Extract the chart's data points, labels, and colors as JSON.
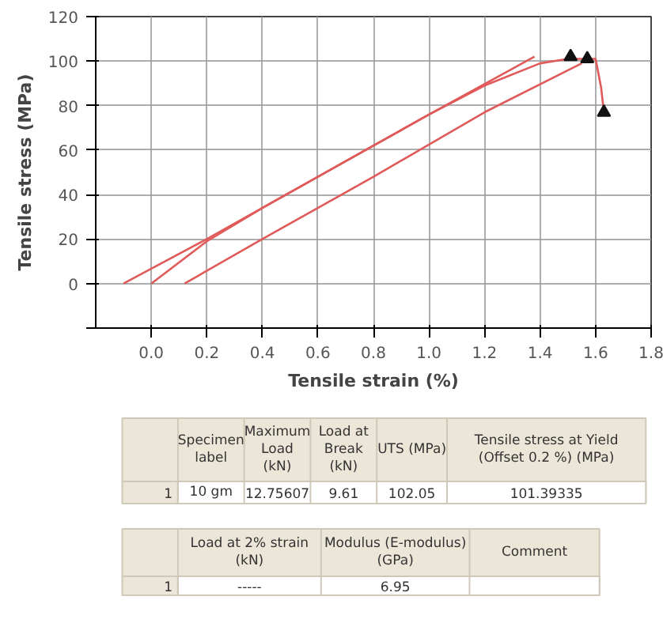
{
  "chart_data": {
    "type": "line",
    "xlabel": "Tensile strain (%)",
    "ylabel": "Tensile stress (MPa)",
    "xlim": [
      -0.2,
      1.8
    ],
    "ylim": [
      -20,
      120
    ],
    "xticks": [
      {
        "value": 0,
        "label": "0.0"
      },
      0.2,
      0.4,
      0.6,
      0.8,
      {
        "value": 1,
        "label": "1.0"
      },
      1.2,
      1.4,
      1.6,
      1.8
    ],
    "yticks": [
      {
        "value": -20,
        "label": null
      },
      0,
      20,
      40,
      60,
      80,
      100,
      120
    ],
    "grid": true,
    "marker": "none",
    "line_style": "solid",
    "series": [
      {
        "color": "#e05a5a",
        "x": [
          -0.1,
          0.2,
          0.6,
          1.0,
          1.38
        ],
        "values": [
          0,
          20,
          48,
          76,
          102
        ]
      },
      {
        "color": "#e05a5a",
        "x": [
          0,
          0.2,
          0.4,
          0.6,
          0.8,
          1.0,
          1.2,
          1.4,
          1.5,
          1.6,
          1.62,
          1.63
        ],
        "values": [
          0,
          19,
          34,
          48,
          62,
          76,
          89,
          99,
          101,
          101,
          88,
          77
        ]
      },
      {
        "color": "#e05a5a",
        "x": [
          0.12,
          0.4,
          0.8,
          1.2,
          1.55
        ],
        "values": [
          0,
          20,
          48,
          77,
          99
        ]
      },
      {
        "type": "scatter",
        "marker": "triangle",
        "color": "#111111",
        "x": [
          1.51,
          1.57,
          1.63
        ],
        "values": [
          102,
          101,
          77
        ]
      }
    ],
    "annotations": [
      "Specimen label",
      "Maximum Load (kN)",
      "Load at Break (kN)",
      "UTS (MPa)",
      "Tensile stress at Yield (Offset 0.2 %) (MPa)",
      "1",
      "10 gm",
      "12.75607",
      "9.61",
      "102.05",
      "101.39335",
      "Load at 2% strain (kN)",
      "Modulus (E-modulus) (GPa)",
      "Comment",
      "1",
      "-----",
      "6.95"
    ]
  }
}
